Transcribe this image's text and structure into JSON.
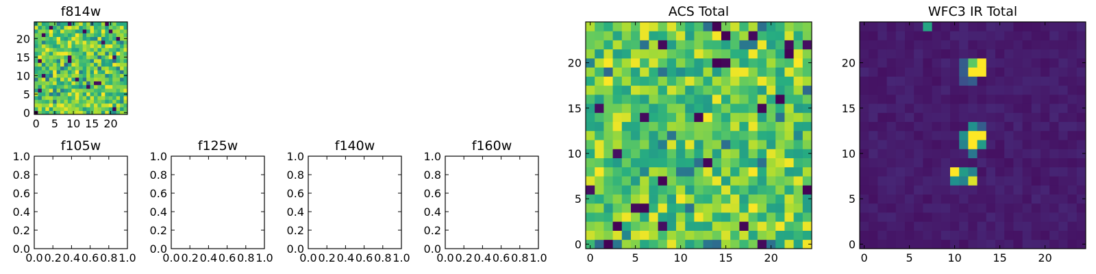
{
  "chart_data": [
    {
      "id": "f814w",
      "type": "heatmap",
      "title": "f814w",
      "grid_size": 25,
      "seed": 7,
      "pattern": "noise",
      "xticks": [
        0,
        5,
        10,
        15,
        20
      ],
      "yticks": [
        0,
        5,
        10,
        15,
        20
      ],
      "xlim": [
        -0.5,
        24.5
      ],
      "ylim": [
        -0.5,
        24.5
      ]
    },
    {
      "id": "f105w",
      "type": "empty",
      "title": "f105w",
      "xticks": [
        "0.0",
        "0.2",
        "0.4",
        "0.6",
        "0.8",
        "1.0"
      ],
      "yticks": [
        "0.0",
        "0.2",
        "0.4",
        "0.6",
        "0.8",
        "1.0"
      ],
      "xlim": [
        0,
        1
      ],
      "ylim": [
        0,
        1
      ]
    },
    {
      "id": "f125w",
      "type": "empty",
      "title": "f125w",
      "xticks": [
        "0.0",
        "0.2",
        "0.4",
        "0.6",
        "0.8",
        "1.0"
      ],
      "yticks": [
        "0.0",
        "0.2",
        "0.4",
        "0.6",
        "0.8",
        "1.0"
      ],
      "xlim": [
        0,
        1
      ],
      "ylim": [
        0,
        1
      ]
    },
    {
      "id": "f140w",
      "type": "empty",
      "title": "f140w",
      "xticks": [
        "0.0",
        "0.2",
        "0.4",
        "0.6",
        "0.8",
        "1.0"
      ],
      "yticks": [
        "0.0",
        "0.2",
        "0.4",
        "0.6",
        "0.8",
        "1.0"
      ],
      "xlim": [
        0,
        1
      ],
      "ylim": [
        0,
        1
      ]
    },
    {
      "id": "f160w",
      "type": "empty",
      "title": "f160w",
      "xticks": [
        "0.0",
        "0.2",
        "0.4",
        "0.6",
        "0.8",
        "1.0"
      ],
      "yticks": [
        "0.0",
        "0.2",
        "0.4",
        "0.6",
        "0.8",
        "1.0"
      ],
      "xlim": [
        0,
        1
      ],
      "ylim": [
        0,
        1
      ]
    },
    {
      "id": "acs-total",
      "type": "heatmap",
      "title": "ACS Total",
      "grid_size": 25,
      "seed": 13,
      "pattern": "noise",
      "xticks": [
        0,
        5,
        10,
        15,
        20
      ],
      "yticks": [
        0,
        5,
        10,
        15,
        20
      ],
      "xlim": [
        -0.5,
        24.5
      ],
      "ylim": [
        -0.5,
        24.5
      ]
    },
    {
      "id": "wfc3-ir-total",
      "type": "heatmap",
      "title": "WFC3 IR Total",
      "grid_size": 25,
      "seed": 29,
      "pattern": "sources",
      "background_level": 0.08,
      "sources": [
        {
          "x": 7,
          "y": 24,
          "value": 0.6
        },
        {
          "x": 12,
          "y": 20,
          "value": 0.75
        },
        {
          "x": 13,
          "y": 20,
          "value": 1.0
        },
        {
          "x": 12,
          "y": 19,
          "value": 1.0
        },
        {
          "x": 13,
          "y": 19,
          "value": 1.0
        },
        {
          "x": 11,
          "y": 20,
          "value": 0.3
        },
        {
          "x": 11,
          "y": 19,
          "value": 0.3
        },
        {
          "x": 12,
          "y": 18,
          "value": 0.3
        },
        {
          "x": 11,
          "y": 18,
          "value": 0.25
        },
        {
          "x": 12,
          "y": 12,
          "value": 1.0
        },
        {
          "x": 13,
          "y": 12,
          "value": 1.0
        },
        {
          "x": 12,
          "y": 11,
          "value": 1.0
        },
        {
          "x": 12,
          "y": 13,
          "value": 0.5
        },
        {
          "x": 11,
          "y": 12,
          "value": 0.5
        },
        {
          "x": 11,
          "y": 11,
          "value": 0.45
        },
        {
          "x": 13,
          "y": 11,
          "value": 0.55
        },
        {
          "x": 13,
          "y": 13,
          "value": 0.3
        },
        {
          "x": 12,
          "y": 10,
          "value": 0.4
        },
        {
          "x": 10,
          "y": 8,
          "value": 1.0
        },
        {
          "x": 11,
          "y": 8,
          "value": 0.55
        },
        {
          "x": 12,
          "y": 8,
          "value": 0.45
        },
        {
          "x": 10,
          "y": 7,
          "value": 0.5
        },
        {
          "x": 11,
          "y": 7,
          "value": 0.45
        },
        {
          "x": 12,
          "y": 7,
          "value": 0.95
        }
      ],
      "xticks": [
        0,
        5,
        10,
        15,
        20
      ],
      "yticks": [
        0,
        5,
        10,
        15,
        20
      ],
      "xlim": [
        -0.5,
        24.5
      ],
      "ylim": [
        -0.5,
        24.5
      ]
    }
  ]
}
